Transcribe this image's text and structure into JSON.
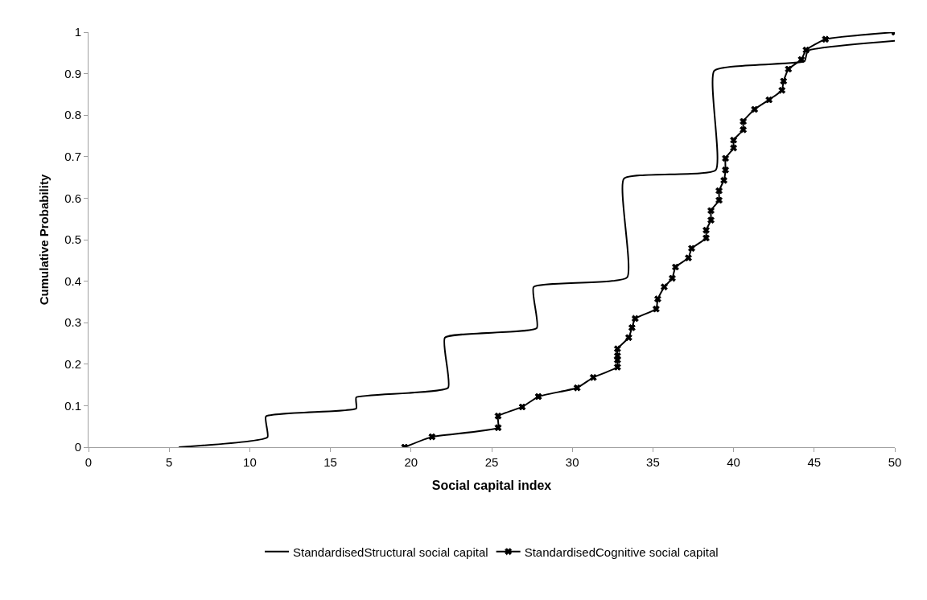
{
  "chart_data": {
    "type": "line",
    "xlabel": "Social capital index",
    "ylabel": "Cumulative Probability",
    "xlim": [
      0,
      50
    ],
    "xticks": [
      0,
      5,
      10,
      15,
      20,
      25,
      30,
      35,
      40,
      45,
      50
    ],
    "ylim": [
      0,
      1
    ],
    "yticks": [
      0,
      0.1,
      0.2,
      0.3,
      0.4,
      0.5,
      0.6,
      0.7,
      0.8,
      0.9,
      1
    ],
    "legend": "bottom",
    "series": [
      {
        "name": "StandardisedStructural social capital",
        "color": "#000000",
        "marker": "none",
        "line_style": "solid",
        "x": [
          5.6,
          11.1,
          11.0,
          16.6,
          16.6,
          22.3,
          22.1,
          27.8,
          27.6,
          33.4,
          33.2,
          38.9,
          38.8,
          44.4,
          44.6,
          50
        ],
        "values": [
          0,
          0.024,
          0.074,
          0.093,
          0.12,
          0.143,
          0.264,
          0.287,
          0.386,
          0.409,
          0.647,
          0.668,
          0.907,
          0.93,
          0.955,
          0.979
        ]
      },
      {
        "name": "StandardisedCognitive social capital",
        "color": "#000000",
        "marker": "cross",
        "line_style": "solid",
        "x": [
          19.6,
          21.3,
          25.4,
          25.4,
          26.9,
          27.9,
          30.3,
          31.3,
          32.8,
          32.8,
          32.8,
          32.8,
          33.5,
          33.7,
          33.9,
          35.2,
          35.3,
          35.7,
          36.2,
          36.4,
          37.2,
          37.4,
          38.3,
          38.3,
          38.6,
          38.6,
          39.1,
          39.1,
          39.4,
          39.5,
          39.5,
          40.0,
          40.0,
          40.6,
          40.6,
          41.3,
          42.2,
          43.0,
          43.1,
          43.4,
          44.2,
          44.5,
          45.7,
          50
        ],
        "values": [
          0,
          0.025,
          0.047,
          0.075,
          0.097,
          0.122,
          0.143,
          0.168,
          0.193,
          0.21,
          0.22,
          0.237,
          0.264,
          0.288,
          0.31,
          0.333,
          0.357,
          0.386,
          0.407,
          0.434,
          0.456,
          0.479,
          0.504,
          0.523,
          0.547,
          0.57,
          0.595,
          0.618,
          0.643,
          0.668,
          0.696,
          0.721,
          0.74,
          0.765,
          0.785,
          0.814,
          0.837,
          0.86,
          0.882,
          0.911,
          0.934,
          0.957,
          0.983,
          1.0
        ]
      }
    ]
  }
}
